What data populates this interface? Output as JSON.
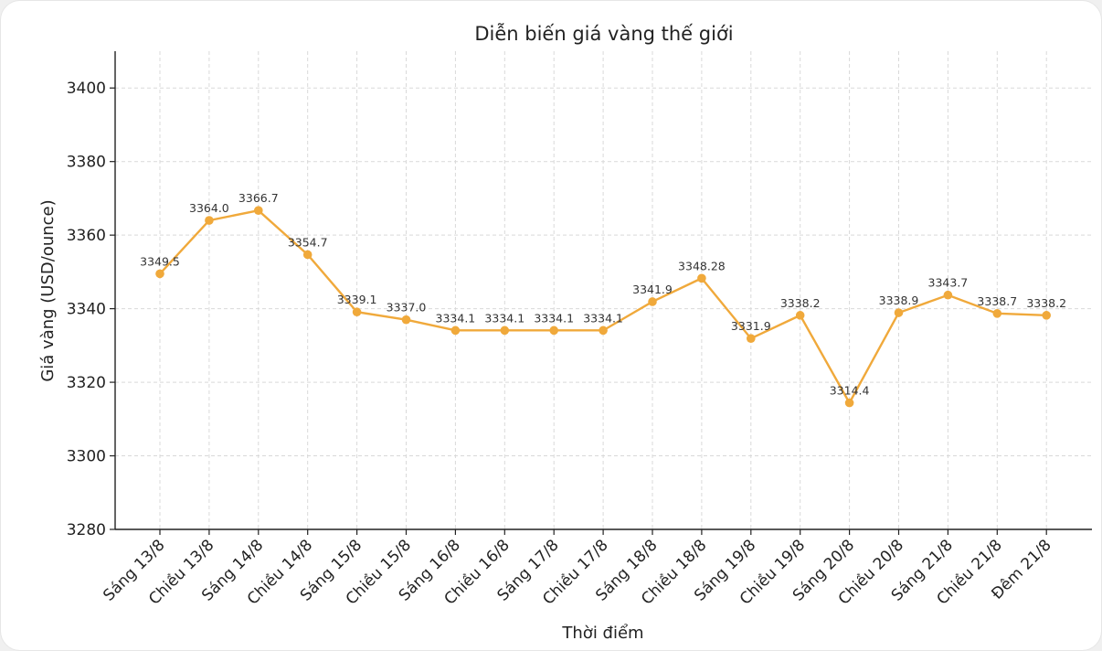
{
  "chart_data": {
    "type": "line",
    "title": "Diễn biến giá vàng thế giới",
    "xlabel": "Thời điểm",
    "ylabel": "Giá vàng (USD/ounce)",
    "ylim": [
      3280,
      3410
    ],
    "yticks": [
      3280,
      3300,
      3320,
      3340,
      3360,
      3380,
      3400
    ],
    "grid": true,
    "color": "#f0a93b",
    "categories": [
      "Sáng 13/8",
      "Chiều 13/8",
      "Sáng 14/8",
      "Chiều 14/8",
      "Sáng 15/8",
      "Chiều 15/8",
      "Sáng 16/8",
      "Chiều 16/8",
      "Sáng 17/8",
      "Chiều 17/8",
      "Sáng 18/8",
      "Chiều 18/8",
      "Sáng 19/8",
      "Chiều 19/8",
      "Sáng 20/8",
      "Chiều 20/8",
      "Sáng 21/8",
      "Chiều 21/8",
      "Đêm 21/8"
    ],
    "values": [
      3349.5,
      3364.0,
      3366.7,
      3354.7,
      3339.1,
      3337.0,
      3334.1,
      3334.1,
      3334.1,
      3334.1,
      3341.9,
      3348.28,
      3331.9,
      3338.2,
      3314.4,
      3338.9,
      3343.7,
      3338.7,
      3338.2
    ],
    "data_labels": [
      "3349.5",
      "3364.0",
      "3366.7",
      "3354.7",
      "3339.1",
      "3337.0",
      "3334.1",
      "3334.1",
      "3334.1",
      "3334.1",
      "3341.9",
      "3348.28",
      "3331.9",
      "3338.2",
      "3314.4",
      "3338.9",
      "3343.7",
      "3338.7",
      "3338.2"
    ]
  }
}
